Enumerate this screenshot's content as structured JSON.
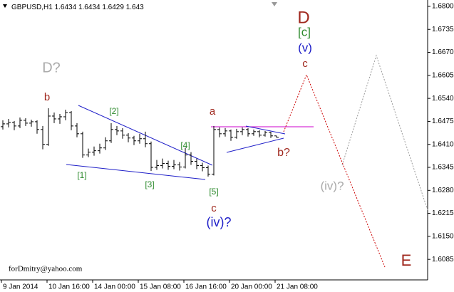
{
  "chart_data": {
    "type": "ohlc",
    "title": "GBPUSD,H1",
    "footer": "forDmitry@yahoo.com",
    "color": "#000000",
    "grid": false,
    "x": [
      1,
      3,
      5,
      7,
      9,
      11,
      13,
      15,
      17,
      19,
      21,
      23,
      25,
      27,
      29,
      31,
      33,
      35,
      37,
      39,
      41,
      43,
      45,
      47,
      49,
      51,
      53,
      55,
      57,
      59,
      61,
      63,
      65,
      67,
      69,
      71,
      73,
      75,
      77,
      79,
      81,
      83,
      85,
      87,
      89,
      91,
      93,
      95,
      97
    ],
    "open": [
      1.646,
      1.6468,
      1.6472,
      1.6462,
      1.6478,
      1.647,
      1.6474,
      1.6452,
      1.641,
      1.649,
      1.6482,
      1.6488,
      1.65,
      1.6462,
      1.644,
      1.638,
      1.6388,
      1.6392,
      1.64,
      1.642,
      1.6452,
      1.6448,
      1.6436,
      1.6428,
      1.642,
      1.6426,
      1.6412,
      1.6345,
      1.635,
      1.6356,
      1.6348,
      1.6352,
      1.6346,
      1.638,
      1.6362,
      1.635,
      1.6344,
      1.6326,
      1.6452,
      1.644,
      1.6448,
      1.643,
      1.6446,
      1.6452,
      1.644,
      1.6446,
      1.6436,
      1.6444,
      1.6434
    ],
    "high": [
      1.6478,
      1.6482,
      1.6476,
      1.6486,
      1.6484,
      1.648,
      1.6478,
      1.6462,
      1.6512,
      1.65,
      1.6496,
      1.6508,
      1.6504,
      1.647,
      1.6446,
      1.6398,
      1.6404,
      1.6412,
      1.643,
      1.647,
      1.6462,
      1.6456,
      1.6442,
      1.6434,
      1.644,
      1.6446,
      1.6418,
      1.6366,
      1.637,
      1.6364,
      1.6366,
      1.636,
      1.64,
      1.6388,
      1.637,
      1.6358,
      1.635,
      1.6462,
      1.6458,
      1.6456,
      1.6452,
      1.6454,
      1.6458,
      1.6456,
      1.6452,
      1.645,
      1.6448,
      1.6446,
      1.6434
    ],
    "low": [
      1.6452,
      1.6458,
      1.645,
      1.6456,
      1.6462,
      1.646,
      1.644,
      1.6396,
      1.6406,
      1.647,
      1.6468,
      1.6478,
      1.645,
      1.643,
      1.6372,
      1.6374,
      1.6378,
      1.6384,
      1.6394,
      1.6414,
      1.6436,
      1.6426,
      1.6416,
      1.6408,
      1.6412,
      1.6402,
      1.6335,
      1.6338,
      1.6342,
      1.6338,
      1.634,
      1.6336,
      1.6342,
      1.6352,
      1.634,
      1.6334,
      1.6319,
      1.6322,
      1.643,
      1.6432,
      1.642,
      1.6426,
      1.6436,
      1.6432,
      1.6434,
      1.643,
      1.6432,
      1.6428,
      1.6429
    ],
    "close": [
      1.6468,
      1.6472,
      1.6462,
      1.6478,
      1.647,
      1.6474,
      1.6452,
      1.641,
      1.649,
      1.6482,
      1.6488,
      1.65,
      1.6462,
      1.644,
      1.638,
      1.6388,
      1.6392,
      1.64,
      1.642,
      1.6452,
      1.6448,
      1.6436,
      1.6428,
      1.642,
      1.6426,
      1.6412,
      1.6345,
      1.635,
      1.6356,
      1.6348,
      1.6352,
      1.6346,
      1.638,
      1.6362,
      1.635,
      1.6344,
      1.6326,
      1.6452,
      1.644,
      1.6448,
      1.643,
      1.6446,
      1.6452,
      1.644,
      1.6446,
      1.6436,
      1.6444,
      1.6434,
      1.643
    ],
    "xlim": [
      0,
      150
    ],
    "xticks": [
      {
        "value": 0.5,
        "label": "9 Jan 2014"
      },
      {
        "value": 16.5,
        "label": "10 Jan 16:00"
      },
      {
        "value": 32.5,
        "label": "14 Jan 00:00"
      },
      {
        "value": 48.5,
        "label": "15 Jan 08:00"
      },
      {
        "value": 64.5,
        "label": "16 Jan 16:00"
      },
      {
        "value": 80.5,
        "label": "20 Jan 00:00"
      },
      {
        "value": 96.5,
        "label": "21 Jan 08:00"
      }
    ],
    "ylim": [
      1.6027,
      1.6814
    ],
    "yticks": [
      {
        "value": 1.68,
        "label": "1.6800"
      },
      1.6735,
      {
        "value": 1.667,
        "label": "1.6670"
      },
      1.6605,
      {
        "value": 1.654,
        "label": "1.6540"
      },
      1.6475,
      {
        "value": 1.641,
        "label": "1.6410"
      },
      1.6345,
      {
        "value": 1.628,
        "label": "1.6280"
      },
      1.6215,
      {
        "value": 1.615,
        "label": "1.6150"
      },
      1.6085
    ],
    "annotations": [
      {
        "text": "D?",
        "color": "#aaaaaa"
      },
      {
        "text": "b",
        "color": "#a0281e"
      },
      {
        "text": "[2]",
        "color": "#2e8b2e"
      },
      {
        "text": "[1]",
        "color": "#2e8b2e"
      },
      {
        "text": "[3]",
        "color": "#2e8b2e"
      },
      {
        "text": "[4]",
        "color": "#2e8b2e"
      },
      {
        "text": "[5]",
        "color": "#2e8b2e"
      },
      {
        "text": "a",
        "color": "#a0281e"
      },
      {
        "text": "c",
        "color": "#a0281e"
      },
      {
        "text": "(iv)?",
        "color": "#1e1ec8"
      },
      {
        "text": "b?",
        "color": "#a0281e"
      },
      {
        "text": "D",
        "color": "#a0281e"
      },
      {
        "text": "[c]",
        "color": "#2e8b2e"
      },
      {
        "text": "(v)",
        "color": "#1e1ec8"
      },
      {
        "text": "c",
        "color": "#a0281e"
      },
      {
        "text": "(iv)?",
        "color": "#aaaaaa"
      },
      {
        "text": "E",
        "color": "#a0281e"
      }
    ]
  }
}
